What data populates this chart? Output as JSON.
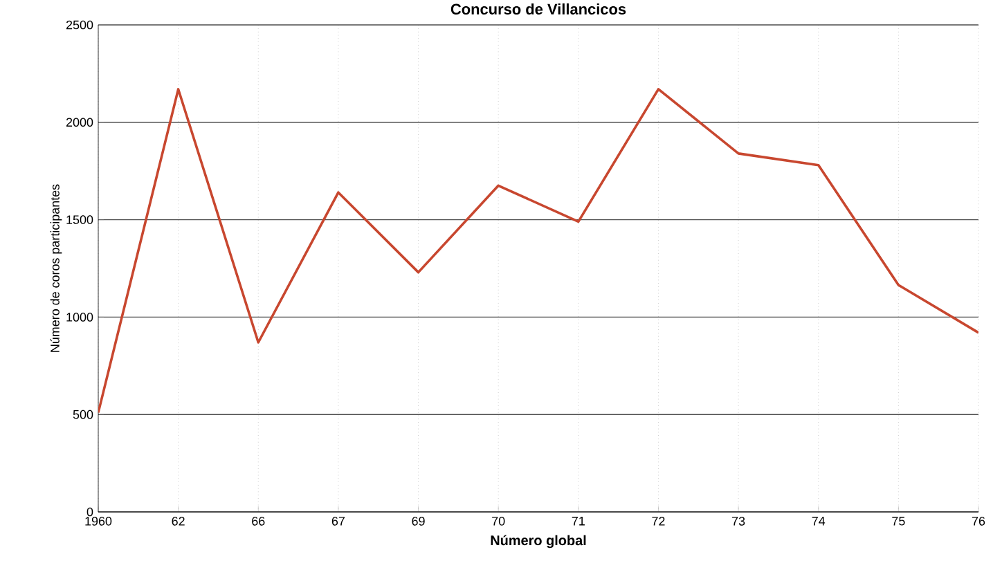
{
  "chart_data": {
    "type": "line",
    "title": "Concurso de Villancicos",
    "xlabel": "Número global",
    "ylabel": "Número de coros participantes",
    "categories": [
      "1960",
      "62",
      "66",
      "67",
      "69",
      "70",
      "71",
      "72",
      "73",
      "74",
      "75",
      "76"
    ],
    "series": [
      {
        "color": "#c8472f",
        "values": [
          510,
          2170,
          870,
          1640,
          1230,
          1675,
          1490,
          2170,
          1840,
          1780,
          1165,
          920
        ]
      }
    ],
    "ylim": [
      0,
      2500
    ],
    "yticks": [
      0,
      500,
      1000,
      1500,
      2000,
      2500
    ],
    "grid": true,
    "marker": "none",
    "line_style": "solid"
  }
}
